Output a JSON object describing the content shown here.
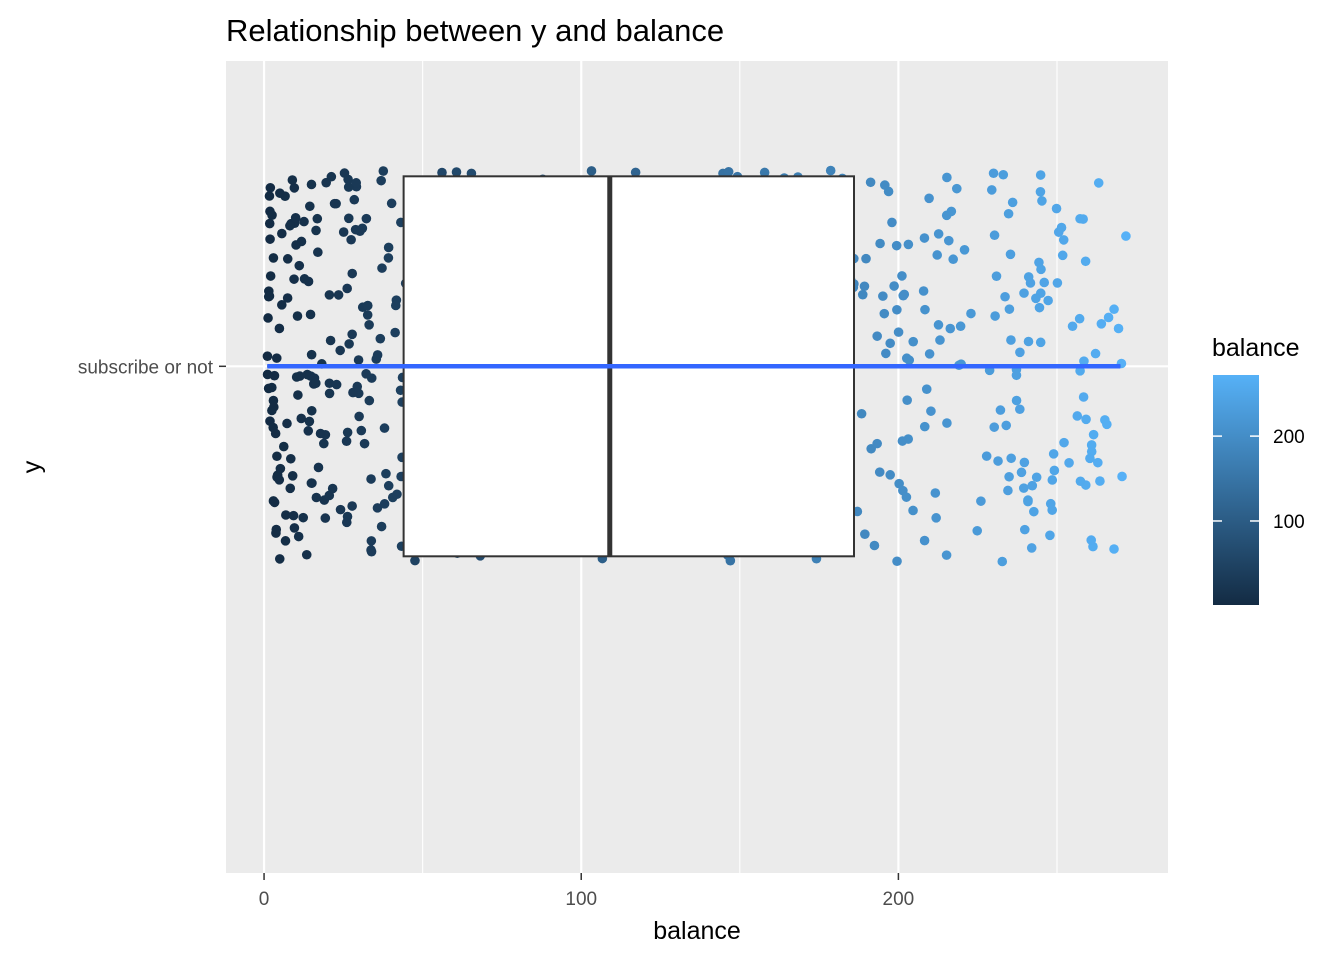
{
  "chart_data": {
    "type": "scatter",
    "title": "Relationship between y and balance",
    "xlabel": "balance",
    "ylabel": "y",
    "xlim": [
      -12,
      285
    ],
    "x_ticks": [
      0,
      100,
      200
    ],
    "x_tick_labels": [
      "0",
      "100",
      "200"
    ],
    "y_categories": [
      "subscribe or not"
    ],
    "grid": true,
    "panel_background": "#EBEBEB",
    "legend": {
      "title": "balance",
      "position": "right",
      "ticks": [
        100,
        200
      ],
      "tick_labels": [
        "100",
        "200"
      ],
      "range": [
        1,
        272
      ],
      "color_low": "#132B43",
      "color_high": "#56B1F7"
    },
    "boxplot": {
      "category": "subscribe or not",
      "q1": 44,
      "median": 109,
      "q3": 186,
      "whisker_low": 1,
      "whisker_high": 270,
      "fill": "#FFFFFF",
      "outline": "#333333"
    },
    "smooth_line": {
      "color": "#3366FF",
      "x_range": [
        1,
        270
      ]
    },
    "points": {
      "category": "subscribe or not",
      "x_range": [
        1,
        272
      ],
      "count": 700,
      "jitter_height": 0.4,
      "color_by": "balance"
    }
  }
}
